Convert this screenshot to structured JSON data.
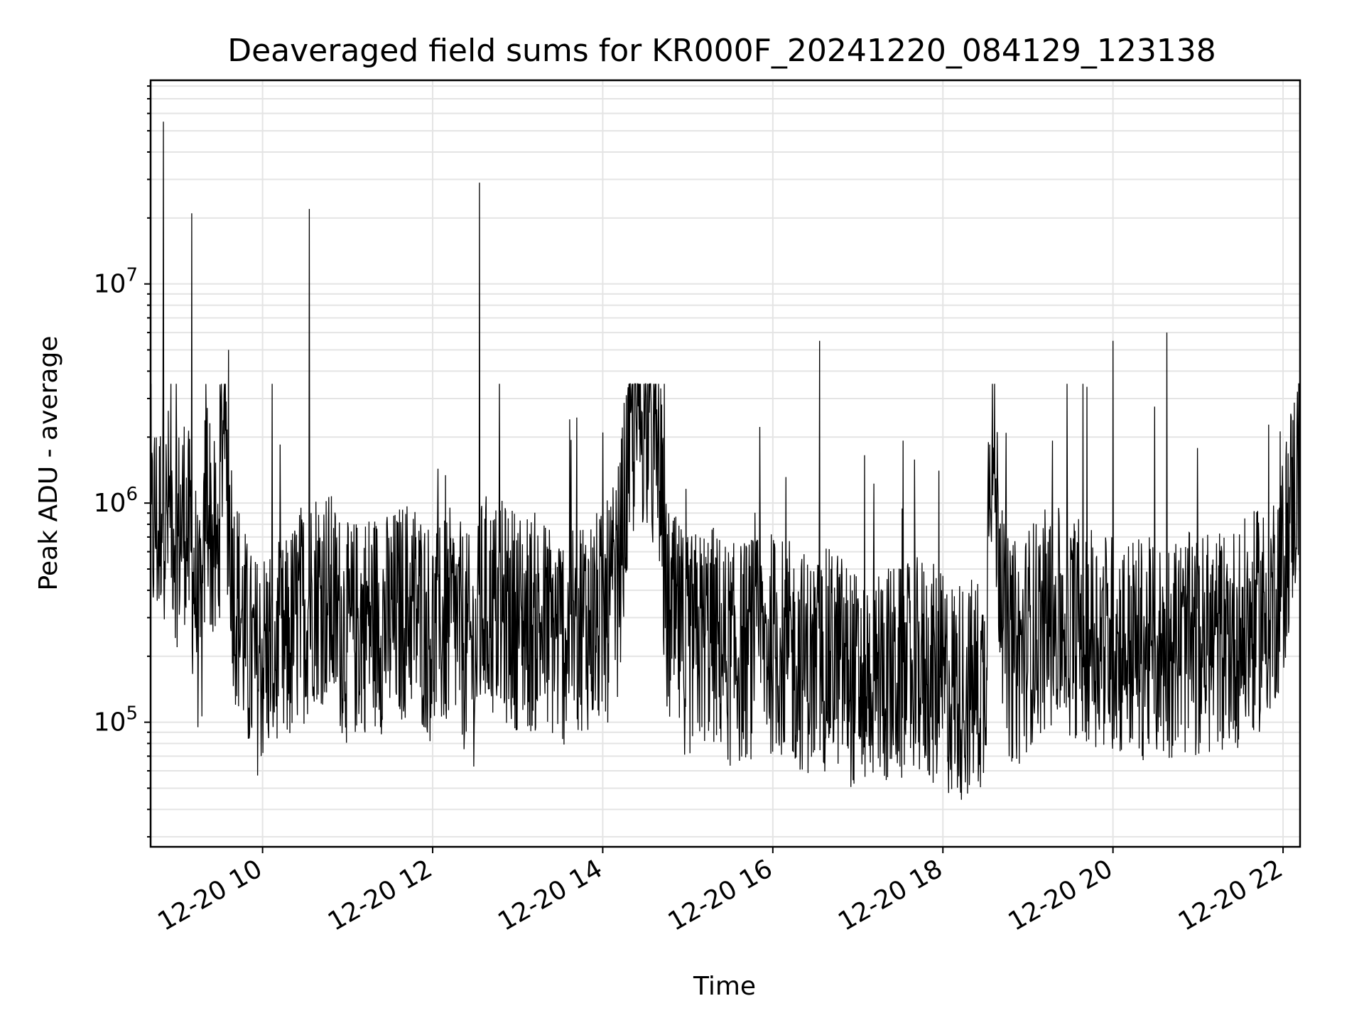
{
  "chart_data": {
    "type": "line",
    "title": "Deaveraged field sums for KR000F_20241220_084129_123138",
    "xlabel": "Time",
    "ylabel": "Peak ADU - average",
    "yscale": "log",
    "xlim": [
      "2024-12-20 08:41",
      "2024-12-20 22:12"
    ],
    "ylim": [
      27000,
      85000000
    ],
    "grid": true,
    "grid_color": "#e4e4e4",
    "line_color": "#000000",
    "x_ticks": [
      "12-20 10",
      "12-20 12",
      "12-20 14",
      "12-20 16",
      "12-20 18",
      "12-20 20",
      "12-20 22"
    ],
    "x_tick_values": [
      "2024-12-20 10:00",
      "2024-12-20 12:00",
      "2024-12-20 14:00",
      "2024-12-20 16:00",
      "2024-12-20 18:00",
      "2024-12-20 20:00",
      "2024-12-20 22:00"
    ],
    "y_ticks": [
      {
        "base": "10",
        "exp": "5",
        "value": 100000
      },
      {
        "base": "10",
        "exp": "6",
        "value": 1000000
      },
      {
        "base": "10",
        "exp": "7",
        "value": 10000000
      }
    ],
    "series": [
      {
        "x": [
          "2024-12-20 08:41",
          "2024-12-20 08:44",
          "2024-12-20 08:47",
          "2024-12-20 08:49",
          "2024-12-20 08:50",
          "2024-12-20 08:52",
          "2024-12-20 08:55",
          "2024-12-20 09:00",
          "2024-12-20 09:05",
          "2024-12-20 09:10",
          "2024-12-20 09:13",
          "2024-12-20 09:15",
          "2024-12-20 09:18",
          "2024-12-20 09:20",
          "2024-12-20 09:24",
          "2024-12-20 09:28",
          "2024-12-20 09:32",
          "2024-12-20 09:36",
          "2024-12-20 09:40",
          "2024-12-20 09:45",
          "2024-12-20 09:50",
          "2024-12-20 09:55",
          "2024-12-20 10:05",
          "2024-12-20 10:15",
          "2024-12-20 10:25",
          "2024-12-20 10:33",
          "2024-12-20 10:34",
          "2024-12-20 10:35",
          "2024-12-20 10:45",
          "2024-12-20 11:00",
          "2024-12-20 11:15",
          "2024-12-20 11:30",
          "2024-12-20 11:45",
          "2024-12-20 12:00",
          "2024-12-20 12:15",
          "2024-12-20 12:20",
          "2024-12-20 12:30",
          "2024-12-20 12:33",
          "2024-12-20 12:34",
          "2024-12-20 12:35",
          "2024-12-20 12:45",
          "2024-12-20 13:00",
          "2024-12-20 13:15",
          "2024-12-20 13:30",
          "2024-12-20 13:37",
          "2024-12-20 13:45",
          "2024-12-20 14:00",
          "2024-12-20 14:10",
          "2024-12-20 14:20",
          "2024-12-20 14:25",
          "2024-12-20 14:30",
          "2024-12-20 14:35",
          "2024-12-20 14:40",
          "2024-12-20 14:45",
          "2024-12-20 14:55",
          "2024-12-20 15:00",
          "2024-12-20 15:15",
          "2024-12-20 15:30",
          "2024-12-20 15:45",
          "2024-12-20 16:00",
          "2024-12-20 16:15",
          "2024-12-20 16:30",
          "2024-12-20 16:33",
          "2024-12-20 16:45",
          "2024-12-20 17:00",
          "2024-12-20 17:15",
          "2024-12-20 17:30",
          "2024-12-20 17:45",
          "2024-12-20 18:00",
          "2024-12-20 18:15",
          "2024-12-20 18:30",
          "2024-12-20 18:33",
          "2024-12-20 18:45",
          "2024-12-20 18:55",
          "2024-12-20 19:00",
          "2024-12-20 19:15",
          "2024-12-20 19:30",
          "2024-12-20 19:45",
          "2024-12-20 19:58",
          "2024-12-20 20:00",
          "2024-12-20 20:15",
          "2024-12-20 20:30",
          "2024-12-20 20:38",
          "2024-12-20 20:45",
          "2024-12-20 21:00",
          "2024-12-20 21:15",
          "2024-12-20 21:30",
          "2024-12-20 21:45",
          "2024-12-20 21:55",
          "2024-12-20 22:00",
          "2024-12-20 22:05",
          "2024-12-20 22:12"
        ],
        "y": [
          600000,
          900000,
          700000,
          1200000,
          55000000,
          800000,
          1000000,
          700000,
          900000,
          21000000,
          400000,
          250000,
          300000,
          1500000,
          700000,
          500000,
          4000000,
          5000000,
          400000,
          300000,
          200000,
          180000,
          220000,
          200000,
          300000,
          22000000,
          350000,
          400000,
          380000,
          250000,
          300000,
          280000,
          350000,
          250000,
          300000,
          250000,
          200000,
          29000000,
          300000,
          350000,
          320000,
          300000,
          280000,
          250000,
          250000,
          300000,
          280000,
          400000,
          2000000,
          3500000,
          4000000,
          1800000,
          1500000,
          300000,
          250000,
          220000,
          260000,
          200000,
          220000,
          230000,
          200000,
          180000,
          5500000,
          200000,
          150000,
          170000,
          160000,
          180000,
          150000,
          140000,
          150000,
          4000000,
          220000,
          200000,
          250000,
          300000,
          280000,
          260000,
          230000,
          5500000,
          220000,
          210000,
          6000000,
          230000,
          220000,
          240000,
          250000,
          300000,
          400000,
          500000,
          900000,
          1500000
        ]
      }
    ]
  }
}
